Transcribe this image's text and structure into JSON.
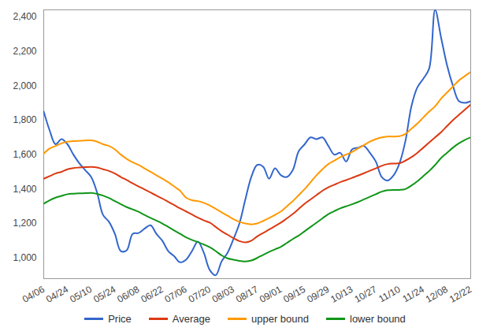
{
  "chart_data": {
    "type": "line",
    "categories": [
      "04/06",
      null,
      null,
      null,
      "04/24",
      null,
      null,
      null,
      "05/10",
      null,
      null,
      null,
      "05/24",
      null,
      null,
      null,
      "06/08",
      null,
      null,
      null,
      "06/22",
      null,
      null,
      null,
      "07/06",
      null,
      null,
      null,
      "07/20",
      null,
      null,
      null,
      "08/03",
      null,
      null,
      null,
      "08/17",
      null,
      null,
      null,
      "09/01",
      null,
      null,
      null,
      "09/15",
      null,
      null,
      null,
      "09/29",
      null,
      null,
      null,
      "10/13",
      null,
      null,
      null,
      "10/27",
      null,
      null,
      null,
      "11/10",
      null,
      null,
      null,
      "11/24",
      null,
      null,
      null,
      "12/08",
      null,
      null,
      null,
      "12/22"
    ],
    "series": [
      {
        "name": "Price",
        "color": "#3366cc",
        "values": [
          1850,
          1740,
          1660,
          1690,
          1660,
          1600,
          1550,
          1510,
          1470,
          1380,
          1250,
          1210,
          1140,
          1040,
          1045,
          1140,
          1145,
          1170,
          1190,
          1140,
          1100,
          1040,
          1010,
          975,
          990,
          1040,
          1095,
          1030,
          930,
          900,
          980,
          1030,
          1110,
          1200,
          1340,
          1470,
          1540,
          1530,
          1460,
          1520,
          1480,
          1470,
          1510,
          1620,
          1660,
          1700,
          1690,
          1700,
          1650,
          1600,
          1610,
          1560,
          1630,
          1640,
          1650,
          1610,
          1560,
          1470,
          1450,
          1480,
          1550,
          1680,
          1880,
          1990,
          2040,
          2100,
          2440,
          2280,
          2120,
          2000,
          1910,
          1900,
          1910
        ]
      },
      {
        "name": "Average",
        "color": "#dc3912",
        "values": [
          1460,
          1475,
          1490,
          1500,
          1515,
          1522,
          1525,
          1527,
          1528,
          1525,
          1515,
          1505,
          1490,
          1470,
          1452,
          1433,
          1415,
          1398,
          1380,
          1362,
          1345,
          1326,
          1307,
          1288,
          1270,
          1252,
          1234,
          1218,
          1205,
          1180,
          1155,
          1135,
          1115,
          1098,
          1090,
          1100,
          1125,
          1145,
          1165,
          1185,
          1205,
          1230,
          1255,
          1285,
          1315,
          1340,
          1365,
          1390,
          1410,
          1425,
          1440,
          1452,
          1465,
          1478,
          1492,
          1506,
          1520,
          1535,
          1545,
          1548,
          1550,
          1565,
          1585,
          1610,
          1640,
          1670,
          1700,
          1730,
          1765,
          1800,
          1830,
          1860,
          1890
        ]
      },
      {
        "name": "upper bound",
        "color": "#ff9900",
        "values": [
          1605,
          1635,
          1650,
          1665,
          1675,
          1678,
          1680,
          1682,
          1683,
          1675,
          1660,
          1650,
          1630,
          1600,
          1575,
          1555,
          1540,
          1520,
          1500,
          1480,
          1460,
          1440,
          1415,
          1390,
          1350,
          1335,
          1330,
          1320,
          1305,
          1285,
          1265,
          1245,
          1225,
          1210,
          1200,
          1195,
          1200,
          1215,
          1232,
          1250,
          1270,
          1300,
          1330,
          1365,
          1400,
          1440,
          1480,
          1515,
          1545,
          1565,
          1585,
          1600,
          1615,
          1635,
          1655,
          1675,
          1690,
          1700,
          1705,
          1705,
          1707,
          1720,
          1750,
          1780,
          1815,
          1850,
          1880,
          1925,
          1960,
          1995,
          2030,
          2055,
          2080
        ]
      },
      {
        "name": "lower bound",
        "color": "#109618",
        "values": [
          1315,
          1335,
          1350,
          1360,
          1370,
          1373,
          1375,
          1376,
          1377,
          1372,
          1362,
          1348,
          1330,
          1312,
          1295,
          1282,
          1268,
          1250,
          1233,
          1217,
          1200,
          1180,
          1160,
          1140,
          1120,
          1105,
          1092,
          1078,
          1062,
          1040,
          1015,
          998,
          990,
          983,
          980,
          985,
          1000,
          1018,
          1035,
          1050,
          1065,
          1087,
          1110,
          1130,
          1155,
          1180,
          1205,
          1230,
          1255,
          1272,
          1288,
          1300,
          1312,
          1325,
          1340,
          1355,
          1370,
          1385,
          1393,
          1395,
          1395,
          1400,
          1420,
          1445,
          1475,
          1505,
          1540,
          1580,
          1610,
          1640,
          1665,
          1685,
          1700
        ]
      }
    ],
    "ylim": [
      880,
      2440
    ],
    "yticks": [
      {
        "value": 1000,
        "label": "1,000"
      },
      {
        "value": 1200,
        "label": "1,200"
      },
      {
        "value": 1400,
        "label": "1,400"
      },
      {
        "value": 1600,
        "label": "1,600"
      },
      {
        "value": 1800,
        "label": "1,800"
      },
      {
        "value": 2000,
        "label": "2,000"
      },
      {
        "value": 2200,
        "label": "2,200"
      },
      {
        "value": 2400,
        "label": "2,400"
      }
    ],
    "grid": false,
    "legend": "bottom"
  }
}
